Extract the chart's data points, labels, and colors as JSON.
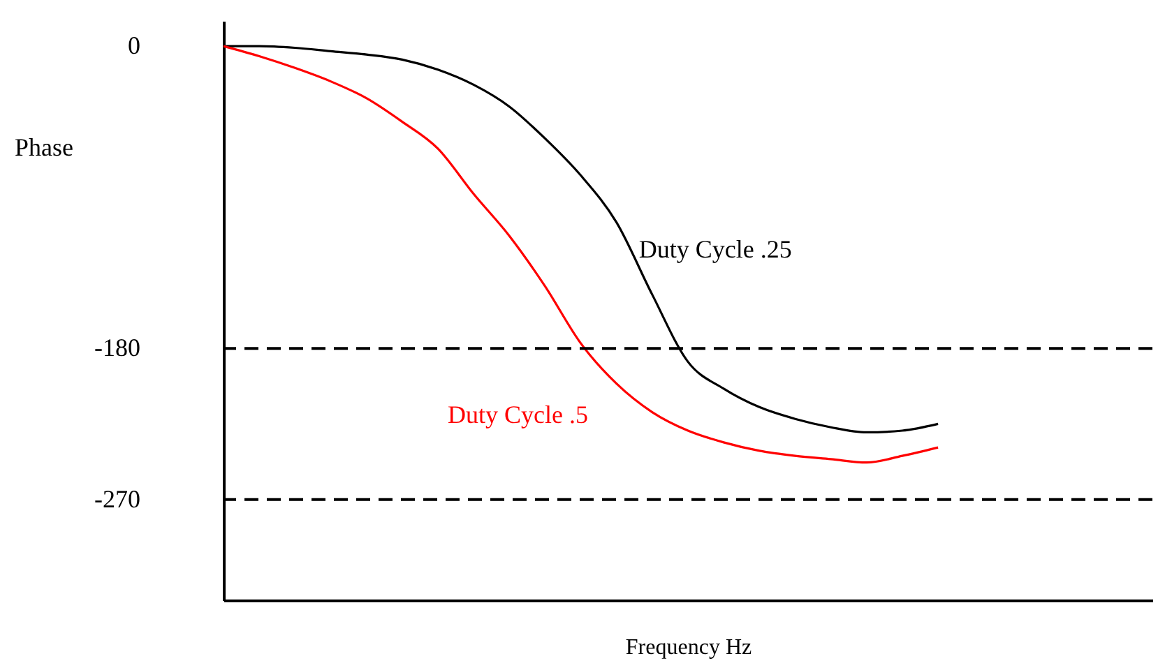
{
  "chart_data": {
    "type": "line",
    "xlabel": "Frequency Hz",
    "ylabel": "Phase",
    "categories": [
      null,
      null,
      null,
      null,
      null,
      null,
      null,
      null,
      null,
      null,
      null,
      null,
      null,
      null,
      null,
      null,
      null,
      null,
      null,
      null,
      null,
      null,
      null,
      null,
      null,
      null,
      null
    ],
    "series": [
      {
        "name": "Duty Cycle .25",
        "color": "#000000",
        "values": [
          0,
          0,
          -1,
          -3,
          -5,
          -8,
          -14,
          -23,
          -36,
          -55,
          -77,
          -105,
          -148,
          -188,
          -204,
          -215,
          -222,
          -227,
          -230,
          -229,
          -225,
          null,
          null,
          null,
          null,
          null,
          null
        ]
      },
      {
        "name": "Duty Cycle .5",
        "color": "#ff0000",
        "values": [
          0,
          -6,
          -13,
          -21,
          -31,
          -45,
          -61,
          -88,
          -113,
          -143,
          -177,
          -201,
          -218,
          -229,
          -236,
          -241,
          -244,
          -246,
          -248,
          -244,
          -239,
          null,
          null,
          null,
          null,
          null,
          null
        ]
      }
    ],
    "ylim": [
      -330,
      15
    ],
    "yticks": [
      0,
      -180,
      -270
    ],
    "tick_labels": "y",
    "grid": false,
    "marker": "none",
    "line_style": "solid",
    "ref_lines": [
      {
        "axis": "y",
        "value": -180,
        "color": "#000000",
        "line_style": "dashed"
      },
      {
        "axis": "y",
        "value": -270,
        "color": "#000000",
        "line_style": "dashed"
      }
    ]
  }
}
